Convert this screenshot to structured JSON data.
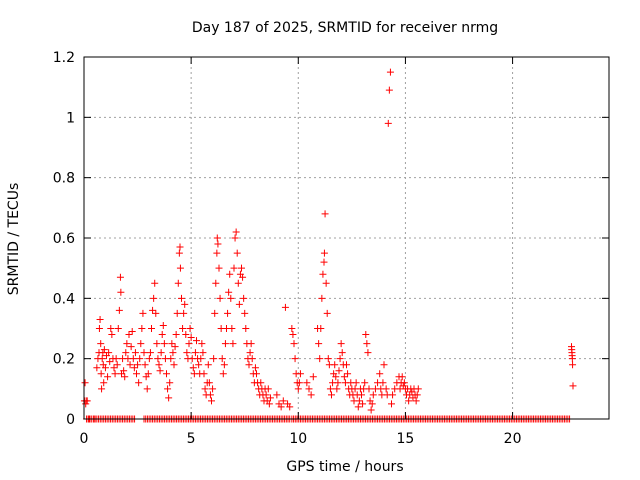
{
  "chart_data": {
    "type": "scatter",
    "title": "Day 187 of 2025, SRMTID for receiver nrmg",
    "xlabel": "GPS time / hours",
    "ylabel": "SRMTID / TECUs",
    "xlim": [
      0,
      24.5
    ],
    "ylim": [
      0,
      1.2
    ],
    "xticks": [
      0,
      5,
      10,
      15,
      20
    ],
    "xtick_labels": [
      "0",
      "5",
      "10",
      "15",
      "20"
    ],
    "yticks": [
      0,
      0.2,
      0.4,
      0.6,
      0.8,
      1,
      1.2
    ],
    "ytick_labels": [
      "0",
      "0.2",
      "0.4",
      "0.6",
      "0.8",
      "1",
      "1.2"
    ],
    "grid": true,
    "marker": "+",
    "color": "#ff0000",
    "series": [
      {
        "name": "SRMTID",
        "points": [
          [
            0.02,
            0.06
          ],
          [
            0.05,
            0.12
          ],
          [
            0.08,
            0.05
          ],
          [
            0.1,
            0.06
          ],
          [
            0.12,
            0.0
          ],
          [
            0.15,
            0.06
          ],
          [
            0.2,
            0.0
          ],
          [
            0.25,
            0.0
          ],
          [
            0.5,
            0.0
          ],
          [
            0.6,
            0.17
          ],
          [
            0.65,
            0.2
          ],
          [
            0.7,
            0.22
          ],
          [
            0.72,
            0.3
          ],
          [
            0.75,
            0.33
          ],
          [
            0.78,
            0.25
          ],
          [
            0.8,
            0.15
          ],
          [
            0.82,
            0.1
          ],
          [
            0.85,
            0.2
          ],
          [
            0.88,
            0.22
          ],
          [
            0.9,
            0.18
          ],
          [
            0.92,
            0.12
          ],
          [
            0.95,
            0.23
          ],
          [
            1.0,
            0.17
          ],
          [
            1.05,
            0.21
          ],
          [
            1.1,
            0.14
          ],
          [
            1.15,
            0.22
          ],
          [
            1.2,
            0.19
          ],
          [
            1.25,
            0.3
          ],
          [
            1.3,
            0.28
          ],
          [
            1.35,
            0.2
          ],
          [
            1.4,
            0.17
          ],
          [
            1.45,
            0.15
          ],
          [
            1.5,
            0.2
          ],
          [
            1.55,
            0.18
          ],
          [
            1.6,
            0.3
          ],
          [
            1.65,
            0.36
          ],
          [
            1.7,
            0.47
          ],
          [
            1.72,
            0.42
          ],
          [
            1.75,
            0.15
          ],
          [
            1.8,
            0.2
          ],
          [
            1.85,
            0.16
          ],
          [
            1.9,
            0.14
          ],
          [
            1.95,
            0.22
          ],
          [
            2.0,
            0.25
          ],
          [
            2.05,
            0.2
          ],
          [
            2.1,
            0.28
          ],
          [
            2.15,
            0.18
          ],
          [
            2.2,
            0.24
          ],
          [
            2.25,
            0.29
          ],
          [
            2.3,
            0.2
          ],
          [
            2.35,
            0.17
          ],
          [
            2.4,
            0.22
          ],
          [
            2.45,
            0.15
          ],
          [
            2.5,
            0.18
          ],
          [
            2.55,
            0.12
          ],
          [
            2.6,
            0.2
          ],
          [
            2.65,
            0.25
          ],
          [
            2.7,
            0.3
          ],
          [
            2.75,
            0.35
          ],
          [
            2.8,
            0.22
          ],
          [
            2.85,
            0.18
          ],
          [
            2.9,
            0.14
          ],
          [
            2.95,
            0.1
          ],
          [
            3.0,
            0.15
          ],
          [
            3.05,
            0.2
          ],
          [
            3.1,
            0.22
          ],
          [
            3.15,
            0.3
          ],
          [
            3.2,
            0.36
          ],
          [
            3.25,
            0.4
          ],
          [
            3.3,
            0.45
          ],
          [
            3.35,
            0.35
          ],
          [
            3.4,
            0.25
          ],
          [
            3.45,
            0.2
          ],
          [
            3.5,
            0.18
          ],
          [
            3.55,
            0.16
          ],
          [
            3.6,
            0.22
          ],
          [
            3.65,
            0.28
          ],
          [
            3.7,
            0.31
          ],
          [
            3.75,
            0.25
          ],
          [
            3.8,
            0.2
          ],
          [
            3.85,
            0.15
          ],
          [
            3.9,
            0.1
          ],
          [
            3.95,
            0.07
          ],
          [
            4.0,
            0.12
          ],
          [
            4.05,
            0.2
          ],
          [
            4.1,
            0.25
          ],
          [
            4.15,
            0.22
          ],
          [
            4.2,
            0.18
          ],
          [
            4.25,
            0.24
          ],
          [
            4.3,
            0.28
          ],
          [
            4.35,
            0.35
          ],
          [
            4.4,
            0.45
          ],
          [
            4.45,
            0.55
          ],
          [
            4.48,
            0.57
          ],
          [
            4.5,
            0.5
          ],
          [
            4.55,
            0.4
          ],
          [
            4.6,
            0.3
          ],
          [
            4.65,
            0.35
          ],
          [
            4.7,
            0.38
          ],
          [
            4.75,
            0.28
          ],
          [
            4.8,
            0.22
          ],
          [
            4.85,
            0.2
          ],
          [
            4.9,
            0.25
          ],
          [
            4.95,
            0.3
          ],
          [
            5.0,
            0.27
          ],
          [
            5.05,
            0.2
          ],
          [
            5.1,
            0.17
          ],
          [
            5.15,
            0.15
          ],
          [
            5.2,
            0.22
          ],
          [
            5.25,
            0.26
          ],
          [
            5.3,
            0.2
          ],
          [
            5.35,
            0.18
          ],
          [
            5.4,
            0.15
          ],
          [
            5.45,
            0.2
          ],
          [
            5.5,
            0.25
          ],
          [
            5.55,
            0.22
          ],
          [
            5.6,
            0.15
          ],
          [
            5.65,
            0.1
          ],
          [
            5.7,
            0.08
          ],
          [
            5.75,
            0.12
          ],
          [
            5.8,
            0.18
          ],
          [
            5.85,
            0.12
          ],
          [
            5.9,
            0.08
          ],
          [
            5.95,
            0.06
          ],
          [
            6.0,
            0.1
          ],
          [
            6.05,
            0.2
          ],
          [
            6.1,
            0.35
          ],
          [
            6.15,
            0.45
          ],
          [
            6.2,
            0.55
          ],
          [
            6.22,
            0.6
          ],
          [
            6.25,
            0.58
          ],
          [
            6.3,
            0.5
          ],
          [
            6.35,
            0.4
          ],
          [
            6.4,
            0.3
          ],
          [
            6.45,
            0.2
          ],
          [
            6.5,
            0.15
          ],
          [
            6.55,
            0.18
          ],
          [
            6.6,
            0.25
          ],
          [
            6.65,
            0.3
          ],
          [
            6.7,
            0.35
          ],
          [
            6.75,
            0.42
          ],
          [
            6.8,
            0.48
          ],
          [
            6.85,
            0.4
          ],
          [
            6.9,
            0.3
          ],
          [
            6.95,
            0.25
          ],
          [
            7.0,
            0.5
          ],
          [
            7.05,
            0.6
          ],
          [
            7.1,
            0.62
          ],
          [
            7.15,
            0.55
          ],
          [
            7.2,
            0.45
          ],
          [
            7.25,
            0.38
          ],
          [
            7.3,
            0.48
          ],
          [
            7.35,
            0.5
          ],
          [
            7.4,
            0.47
          ],
          [
            7.45,
            0.4
          ],
          [
            7.5,
            0.35
          ],
          [
            7.55,
            0.3
          ],
          [
            7.6,
            0.25
          ],
          [
            7.65,
            0.2
          ],
          [
            7.7,
            0.18
          ],
          [
            7.75,
            0.22
          ],
          [
            7.8,
            0.25
          ],
          [
            7.85,
            0.2
          ],
          [
            7.9,
            0.15
          ],
          [
            7.95,
            0.12
          ],
          [
            8.0,
            0.17
          ],
          [
            8.05,
            0.15
          ],
          [
            8.1,
            0.12
          ],
          [
            8.15,
            0.1
          ],
          [
            8.2,
            0.08
          ],
          [
            8.25,
            0.12
          ],
          [
            8.3,
            0.1
          ],
          [
            8.35,
            0.08
          ],
          [
            8.4,
            0.06
          ],
          [
            8.45,
            0.1
          ],
          [
            8.5,
            0.08
          ],
          [
            8.55,
            0.06
          ],
          [
            8.6,
            0.1
          ],
          [
            8.65,
            0.05
          ],
          [
            8.7,
            0.07
          ],
          [
            9.0,
            0.08
          ],
          [
            9.1,
            0.05
          ],
          [
            9.2,
            0.04
          ],
          [
            9.3,
            0.06
          ],
          [
            9.4,
            0.37
          ],
          [
            9.5,
            0.05
          ],
          [
            9.6,
            0.04
          ],
          [
            9.7,
            0.3
          ],
          [
            9.75,
            0.28
          ],
          [
            9.8,
            0.25
          ],
          [
            9.85,
            0.2
          ],
          [
            9.9,
            0.15
          ],
          [
            9.95,
            0.12
          ],
          [
            10.0,
            0.1
          ],
          [
            10.05,
            0.12
          ],
          [
            10.1,
            0.15
          ],
          [
            10.4,
            0.12
          ],
          [
            10.5,
            0.1
          ],
          [
            10.6,
            0.08
          ],
          [
            10.7,
            0.14
          ],
          [
            10.9,
            0.3
          ],
          [
            10.95,
            0.25
          ],
          [
            11.0,
            0.2
          ],
          [
            11.05,
            0.3
          ],
          [
            11.1,
            0.4
          ],
          [
            11.15,
            0.48
          ],
          [
            11.2,
            0.52
          ],
          [
            11.22,
            0.55
          ],
          [
            11.25,
            0.68
          ],
          [
            11.3,
            0.45
          ],
          [
            11.35,
            0.35
          ],
          [
            11.4,
            0.2
          ],
          [
            11.45,
            0.18
          ],
          [
            11.5,
            0.1
          ],
          [
            11.55,
            0.08
          ],
          [
            11.6,
            0.12
          ],
          [
            11.65,
            0.15
          ],
          [
            11.7,
            0.18
          ],
          [
            11.75,
            0.14
          ],
          [
            11.8,
            0.1
          ],
          [
            11.85,
            0.12
          ],
          [
            11.9,
            0.16
          ],
          [
            11.95,
            0.2
          ],
          [
            12.0,
            0.25
          ],
          [
            12.05,
            0.22
          ],
          [
            12.1,
            0.18
          ],
          [
            12.15,
            0.14
          ],
          [
            12.2,
            0.12
          ],
          [
            12.25,
            0.18
          ],
          [
            12.3,
            0.15
          ],
          [
            12.35,
            0.1
          ],
          [
            12.4,
            0.08
          ],
          [
            12.45,
            0.12
          ],
          [
            12.5,
            0.1
          ],
          [
            12.55,
            0.08
          ],
          [
            12.6,
            0.06
          ],
          [
            12.65,
            0.1
          ],
          [
            12.7,
            0.12
          ],
          [
            12.75,
            0.08
          ],
          [
            12.8,
            0.04
          ],
          [
            12.85,
            0.06
          ],
          [
            12.9,
            0.1
          ],
          [
            12.95,
            0.08
          ],
          [
            13.0,
            0.05
          ],
          [
            13.05,
            0.1
          ],
          [
            13.1,
            0.12
          ],
          [
            13.15,
            0.28
          ],
          [
            13.2,
            0.25
          ],
          [
            13.25,
            0.22
          ],
          [
            13.3,
            0.1
          ],
          [
            13.35,
            0.06
          ],
          [
            13.4,
            0.03
          ],
          [
            13.45,
            0.05
          ],
          [
            13.5,
            0.08
          ],
          [
            13.6,
            0.1
          ],
          [
            13.7,
            0.12
          ],
          [
            13.8,
            0.15
          ],
          [
            13.85,
            0.1
          ],
          [
            13.9,
            0.08
          ],
          [
            13.95,
            0.12
          ],
          [
            14.0,
            0.18
          ],
          [
            14.1,
            0.1
          ],
          [
            14.15,
            0.08
          ],
          [
            14.2,
            0.98
          ],
          [
            14.25,
            1.09
          ],
          [
            14.3,
            1.15
          ],
          [
            14.35,
            0.05
          ],
          [
            14.4,
            0.08
          ],
          [
            14.5,
            0.1
          ],
          [
            14.6,
            0.12
          ],
          [
            14.7,
            0.14
          ],
          [
            14.75,
            0.1
          ],
          [
            14.8,
            0.12
          ],
          [
            14.85,
            0.14
          ],
          [
            14.9,
            0.11
          ],
          [
            14.95,
            0.12
          ],
          [
            15.0,
            0.1
          ],
          [
            15.05,
            0.08
          ],
          [
            15.1,
            0.1
          ],
          [
            15.15,
            0.06
          ],
          [
            15.2,
            0.08
          ],
          [
            15.25,
            0.1
          ],
          [
            15.3,
            0.09
          ],
          [
            15.35,
            0.07
          ],
          [
            15.4,
            0.1
          ],
          [
            15.45,
            0.08
          ],
          [
            15.5,
            0.06
          ],
          [
            15.55,
            0.08
          ],
          [
            15.6,
            0.1
          ],
          [
            22.75,
            0.24
          ],
          [
            22.76,
            0.23
          ],
          [
            22.77,
            0.22
          ],
          [
            22.78,
            0.21
          ],
          [
            22.79,
            0.2
          ],
          [
            22.8,
            0.18
          ],
          [
            22.82,
            0.11
          ]
        ]
      }
    ],
    "zero_band": {
      "value": 0,
      "ranges": [
        [
          0.2,
          2.4
        ],
        [
          2.8,
          9.6
        ],
        [
          9.7,
          22.7
        ]
      ]
    }
  }
}
